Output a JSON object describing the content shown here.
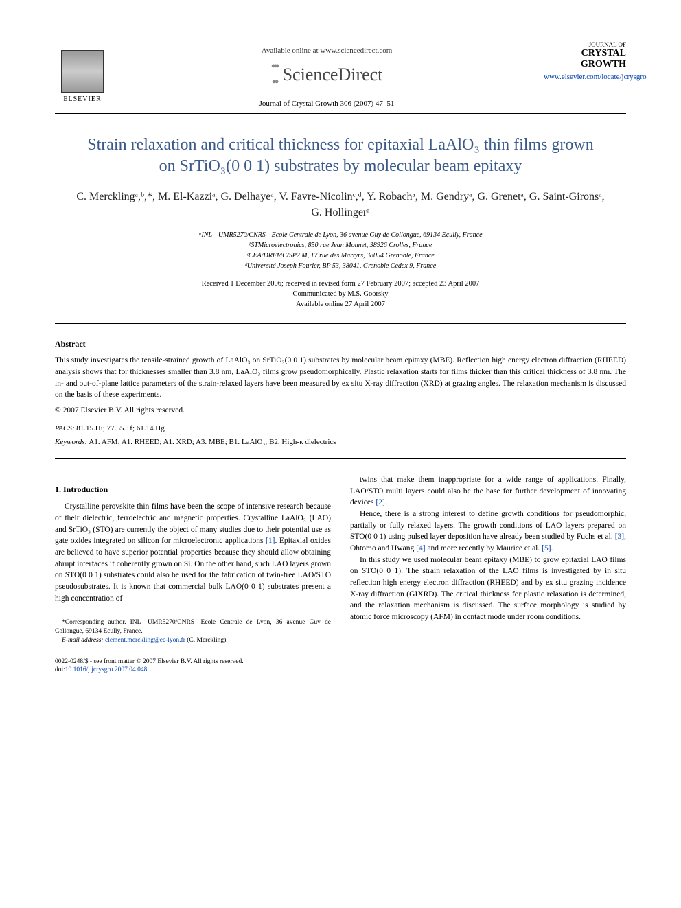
{
  "header": {
    "available_online": "Available online at www.sciencedirect.com",
    "sciencedirect": "ScienceDirect",
    "journal_ref": "Journal of Crystal Growth 306 (2007) 47–51",
    "elsevier": "ELSEVIER",
    "journal_name_small": "JOURNAL OF",
    "journal_name_big": "CRYSTAL GROWTH",
    "journal_link": "www.elsevier.com/locate/jcrysgro"
  },
  "title": "Strain relaxation and critical thickness for epitaxial LaAlO₃ thin films grown on SrTiO₃(0 0 1) substrates by molecular beam epitaxy",
  "authors": "C. Mercklingᵃ,ᵇ,*, M. El-Kazziᵃ, G. Delhayeᵃ, V. Favre-Nicolinᶜ,ᵈ, Y. Robachᵃ, M. Gendryᵃ, G. Grenetᵃ, G. Saint-Gironsᵃ, G. Hollingerᵃ",
  "affiliations": {
    "a": "ᵃINL—UMR5270/CNRS—Ecole Centrale de Lyon, 36 avenue Guy de Collongue, 69134 Ecully, France",
    "b": "ᵇSTMicroelectronics, 850 rue Jean Monnet, 38926 Crolles, France",
    "c": "ᶜCEA/DRFMC/SP2 M, 17 rue des Martyrs, 38054 Grenoble, France",
    "d": "ᵈUniversité Joseph Fourier, BP 53, 38041, Grenoble Cedex 9, France"
  },
  "dates": {
    "received": "Received 1 December 2006; received in revised form 27 February 2007; accepted 23 April 2007",
    "communicated": "Communicated by M.S. Goorsky",
    "available": "Available online 27 April 2007"
  },
  "abstract": {
    "head": "Abstract",
    "body": "This study investigates the tensile-strained growth of LaAlO₃ on SrTiO₃(0 0 1) substrates by molecular beam epitaxy (MBE). Reflection high energy electron diffraction (RHEED) analysis shows that for thicknesses smaller than 3.8 nm, LaAlO₃ films grow pseudomorphically. Plastic relaxation starts for films thicker than this critical thickness of 3.8 nm. The in- and out-of-plane lattice parameters of the strain-relaxed layers have been measured by ex situ X-ray diffraction (XRD) at grazing angles. The relaxation mechanism is discussed on the basis of these experiments.",
    "copyright": "© 2007 Elsevier B.V. All rights reserved."
  },
  "pacs": {
    "label": "PACS:",
    "value": " 81.15.Hi; 77.55.+f; 61.14.Hg"
  },
  "keywords": {
    "label": "Keywords:",
    "value": " A1. AFM; A1. RHEED; A1. XRD; A3. MBE; B1. LaAlO₃; B2. High-κ dielectrics"
  },
  "intro": {
    "head": "1. Introduction",
    "p1a": "Crystalline perovskite thin films have been the scope of intensive research because of their dielectric, ferroelectric and magnetic properties. Crystalline LaAlO₃ (LAO) and SrTiO₃ (STO) are currently the object of many studies due to their potential use as gate oxides integrated on silicon for microelectronic applications ",
    "c1": "[1]",
    "p1b": ". Epitaxial oxides are believed to have superior potential properties because they should allow obtaining abrupt interfaces if coherently grown on Si. On the other hand, such LAO layers grown on STO(0 0 1) substrates could also be used for the fabrication of twin-free LAO/STO pseudosubstrates. It is known that commercial bulk LAO(0 0 1) substrates present a high concentration of",
    "p2a": "twins that make them inappropriate for a wide range of applications. Finally, LAO/STO multi layers could also be the base for further development of innovating devices ",
    "c2": "[2]",
    "p2b": ".",
    "p3a": "Hence, there is a strong interest to define growth conditions for pseudomorphic, partially or fully relaxed layers. The growth conditions of LAO layers prepared on STO(0 0 1) using pulsed layer deposition have already been studied by Fuchs et al. ",
    "c3": "[3]",
    "p3b": ", Ohtomo and Hwang ",
    "c4": "[4]",
    "p3c": " and more recently by Maurice et al. ",
    "c5": "[5]",
    "p3d": ".",
    "p4": "In this study we used molecular beam epitaxy (MBE) to grow epitaxial LAO films on STO(0 0 1). The strain relaxation of the LAO films is investigated by in situ reflection high energy electron diffraction (RHEED) and by ex situ grazing incidence X-ray diffraction (GIXRD). The critical thickness for plastic relaxation is determined, and the relaxation mechanism is discussed. The surface morphology is studied by atomic force microscopy (AFM) in contact mode under room conditions."
  },
  "footnote": {
    "corr": "*Corresponding author. INL—UMR5270/CNRS—Ecole Centrale de Lyon, 36 avenue Guy de Collongue, 69134 Ecully, France.",
    "email_label": "E-mail address:",
    "email": " clement.merckling@ec-lyon.fr",
    "email_tail": " (C. Merckling)."
  },
  "footer": {
    "line1": "0022-0248/$ - see front matter © 2007 Elsevier B.V. All rights reserved.",
    "doi_label": "doi:",
    "doi": "10.1016/j.jcrysgro.2007.04.048"
  },
  "colors": {
    "title": "#3a5a8a",
    "link": "#0645ad",
    "text": "#000000",
    "bg": "#ffffff"
  }
}
